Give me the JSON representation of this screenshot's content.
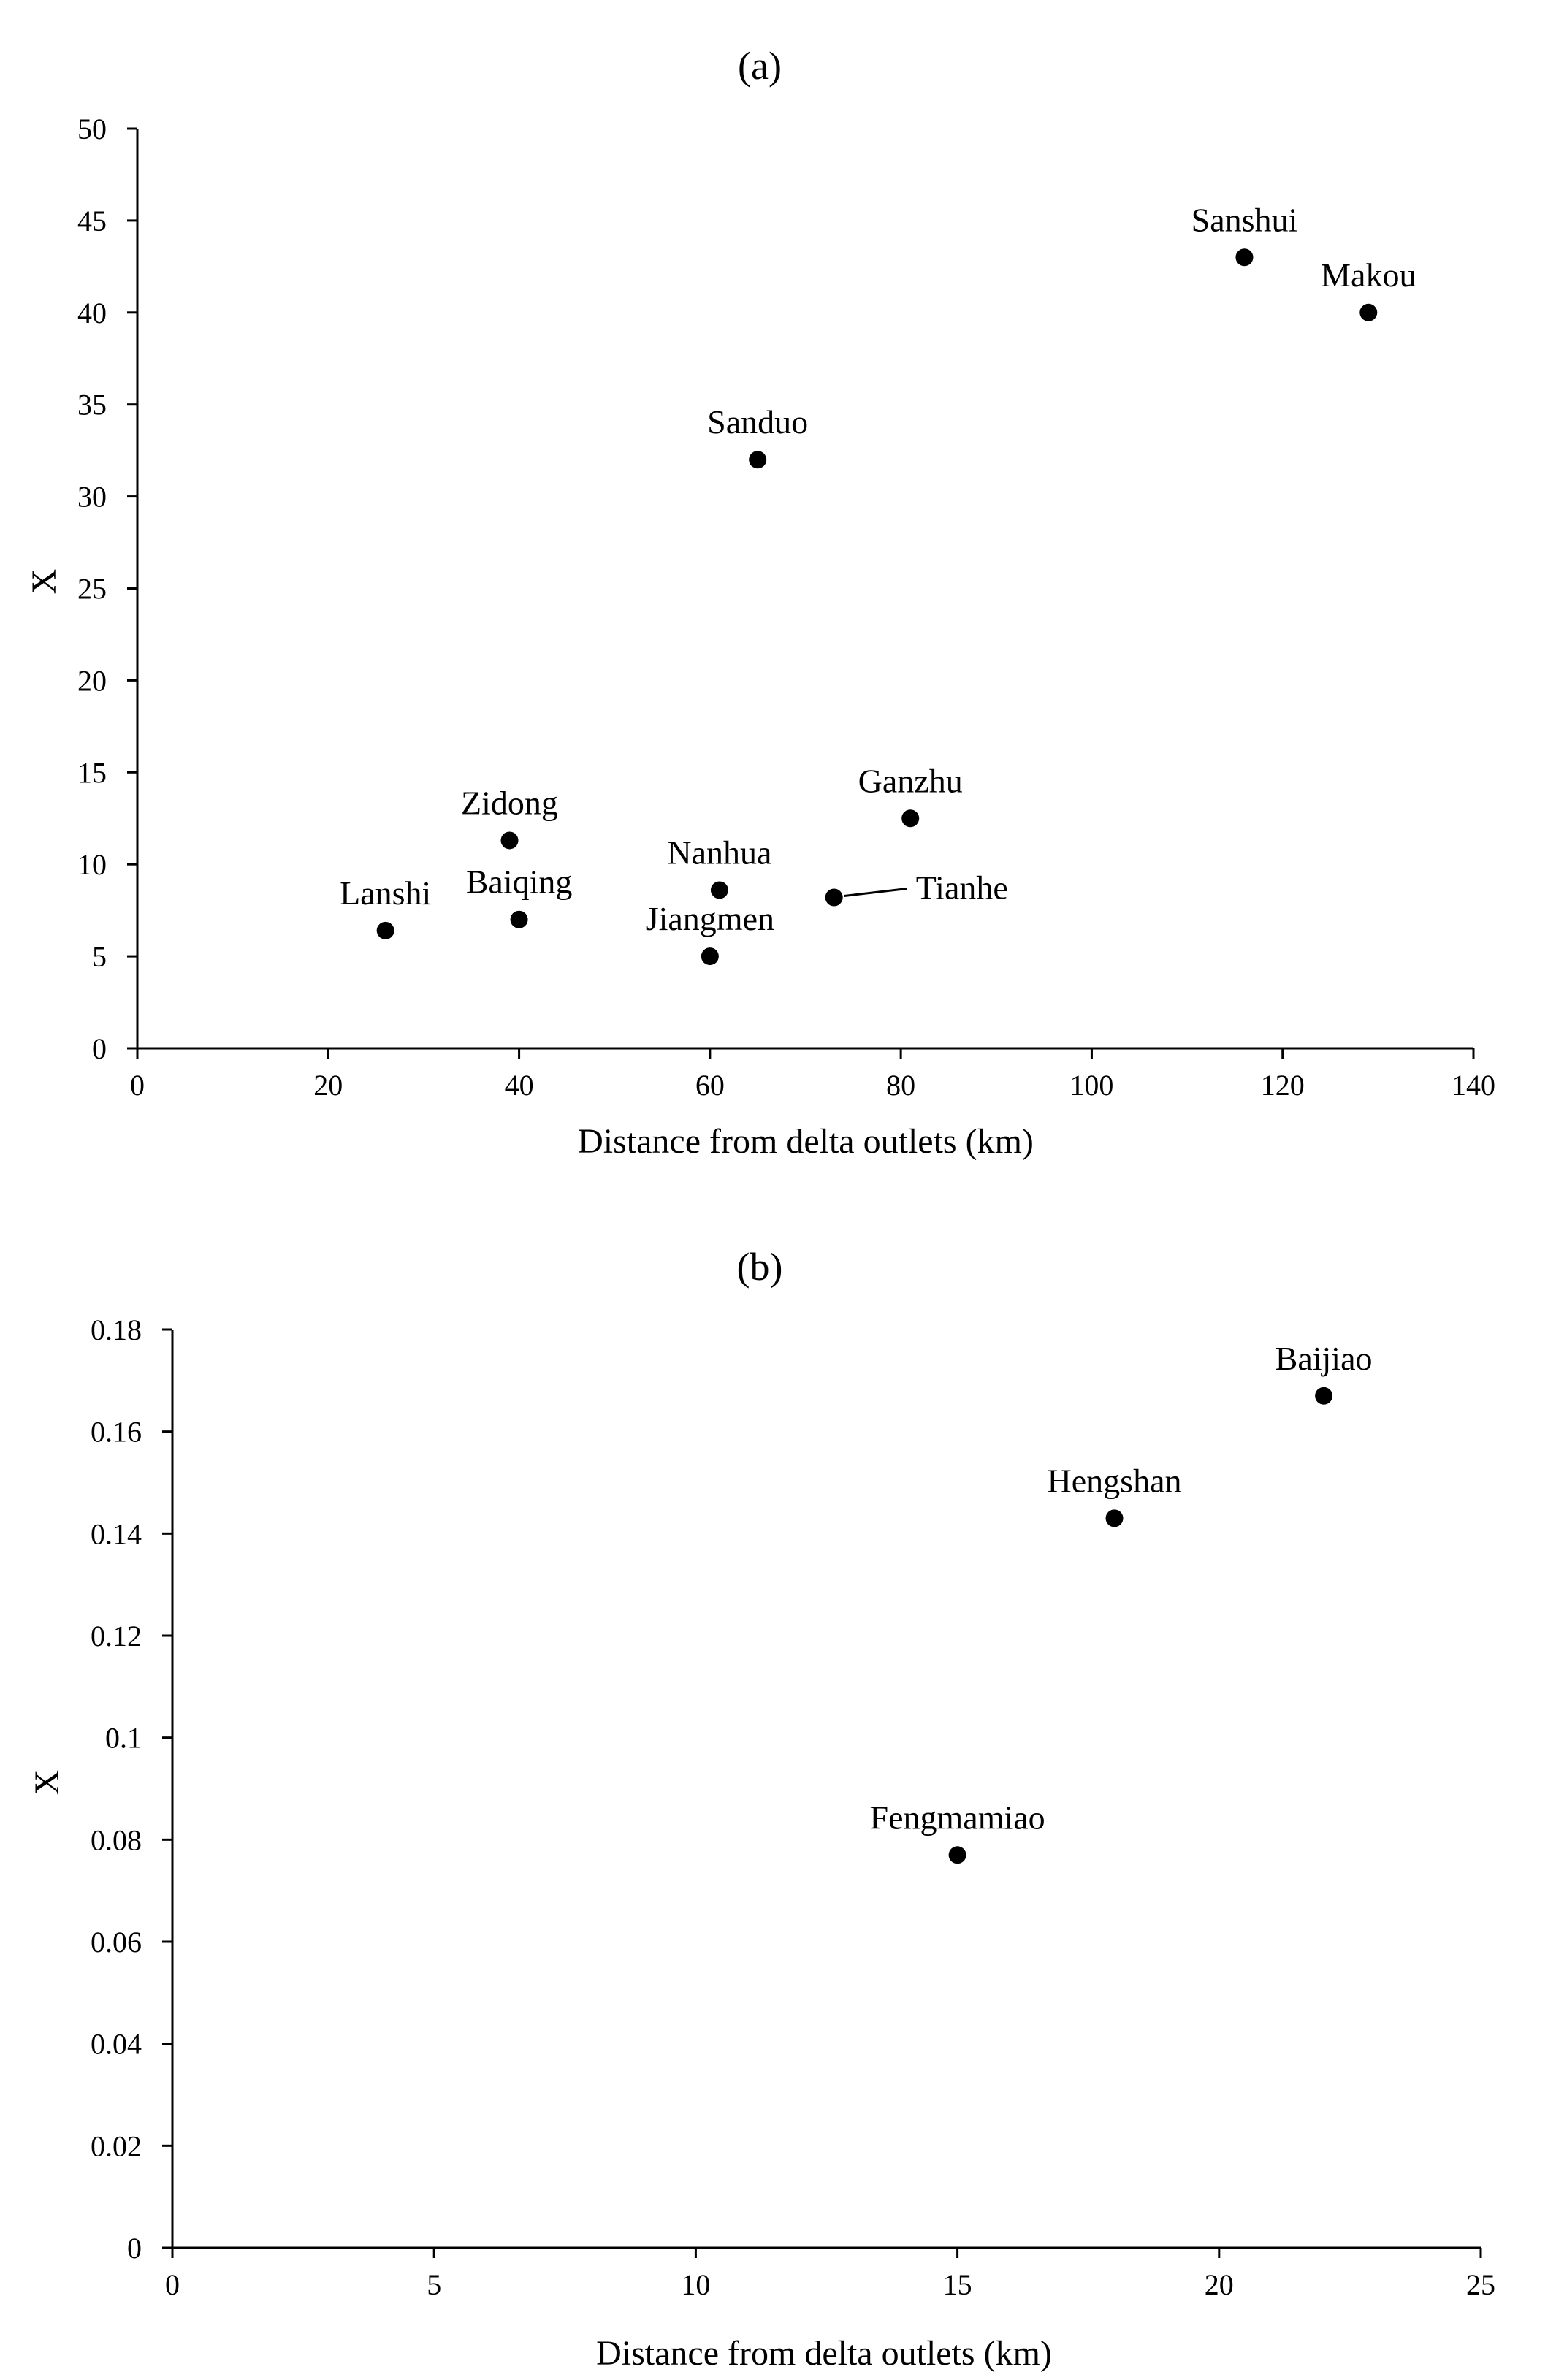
{
  "chart_data": [
    {
      "type": "scatter",
      "title": "(a)",
      "xlabel": "Distance from delta outlets (km)",
      "ylabel": "X",
      "xlim": [
        0,
        140
      ],
      "ylim": [
        0,
        50
      ],
      "xticks": [
        0,
        20,
        40,
        60,
        80,
        100,
        120,
        140
      ],
      "yticks": [
        0,
        5,
        10,
        15,
        20,
        25,
        30,
        35,
        40,
        45,
        50
      ],
      "grid": false,
      "legend": "none",
      "point_color": "#000000",
      "points": [
        {
          "name": "Lanshi",
          "x": 26,
          "y": 6.4,
          "label_pos": "above"
        },
        {
          "name": "Zidong",
          "x": 39,
          "y": 11.3,
          "label_pos": "above"
        },
        {
          "name": "Baiqing",
          "x": 40,
          "y": 7.0,
          "label_pos": "above"
        },
        {
          "name": "Jiangmen",
          "x": 60,
          "y": 5.0,
          "label_pos": "above"
        },
        {
          "name": "Nanhua",
          "x": 61,
          "y": 8.6,
          "label_pos": "above"
        },
        {
          "name": "Sanduo",
          "x": 65,
          "y": 32.0,
          "label_pos": "above"
        },
        {
          "name": "Tianhe",
          "x": 73,
          "y": 8.2,
          "label_pos": "right-leader"
        },
        {
          "name": "Ganzhu",
          "x": 81,
          "y": 12.5,
          "label_pos": "above"
        },
        {
          "name": "Sanshui",
          "x": 116,
          "y": 43.0,
          "label_pos": "above"
        },
        {
          "name": "Makou",
          "x": 129,
          "y": 40.0,
          "label_pos": "above"
        }
      ]
    },
    {
      "type": "scatter",
      "title": "(b)",
      "xlabel": "Distance from delta outlets (km)",
      "ylabel": "X",
      "xlim": [
        0,
        25
      ],
      "ylim": [
        0,
        0.18
      ],
      "xticks": [
        0,
        5,
        10,
        15,
        20,
        25
      ],
      "yticks": [
        0,
        0.02,
        0.04,
        0.06,
        0.08,
        0.1,
        0.12,
        0.14,
        0.16,
        0.18
      ],
      "ytick_labels": [
        "0",
        "0.02",
        "0.04",
        "0.06",
        "0.08",
        "0.1",
        "0.12",
        "0.14",
        "0.16",
        "0.18"
      ],
      "grid": false,
      "legend": "none",
      "point_color": "#000000",
      "points": [
        {
          "name": "Fengmamiao",
          "x": 15,
          "y": 0.077,
          "label_pos": "above"
        },
        {
          "name": "Hengshan",
          "x": 18,
          "y": 0.143,
          "label_pos": "above"
        },
        {
          "name": "Baijiao",
          "x": 22,
          "y": 0.167,
          "label_pos": "above"
        }
      ]
    }
  ]
}
